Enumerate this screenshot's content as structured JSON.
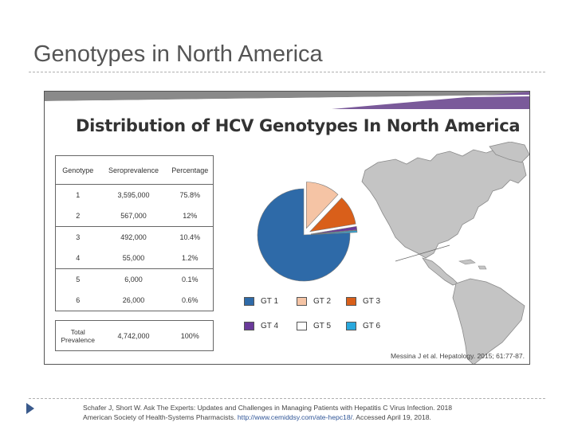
{
  "slide": {
    "title": "Genotypes in North America"
  },
  "figure": {
    "title": "Distribution of HCV Genotypes In North America",
    "citation": "Messina J et al. Hepatology. 2015; 61:77-87.",
    "banner_colors": [
      "#8a8a8a",
      "#7a5a9a"
    ]
  },
  "table": {
    "headers": [
      "Genotype",
      "Seroprevalence",
      "Percentage"
    ],
    "rows": [
      [
        "1",
        "3,595,000",
        "75.8%"
      ],
      [
        "2",
        "567,000",
        "12%"
      ],
      [
        "3",
        "492,000",
        "10.4%"
      ],
      [
        "4",
        "55,000",
        "1.2%"
      ],
      [
        "5",
        "6,000",
        "0.1%"
      ],
      [
        "6",
        "26,000",
        "0.6%"
      ]
    ],
    "total": [
      "Total Prevalence",
      "4,742,000",
      "100%"
    ]
  },
  "chart_data": {
    "type": "pie",
    "title": "Distribution of HCV Genotypes In North America",
    "categories": [
      "GT 1",
      "GT 2",
      "GT 3",
      "GT 4",
      "GT 5",
      "GT 6"
    ],
    "values": [
      75.8,
      12,
      10.4,
      1.2,
      0.1,
      0.6
    ],
    "colors": [
      "#2e6aa8",
      "#f5c4a5",
      "#d95f1a",
      "#6a3a9a",
      "#ffffff",
      "#29a8dd"
    ],
    "legend": [
      {
        "label": "GT 1",
        "color": "#2e6aa8"
      },
      {
        "label": "GT 2",
        "color": "#f5c4a5"
      },
      {
        "label": "GT 3",
        "color": "#d95f1a"
      },
      {
        "label": "GT 4",
        "color": "#6a3a9a"
      },
      {
        "label": "GT 5",
        "color": "#ffffff"
      },
      {
        "label": "GT 6",
        "color": "#29a8dd"
      }
    ],
    "legend_placement": "bottom"
  },
  "footnote": {
    "line1": "Schafer J, Short W. Ask The Experts: Updates and Challenges in Managing Patients with Hepatitis C Virus Infection. 2018",
    "line2_prefix": "American Society of Health-Systems Pharmacists.",
    "url": "http://www.cemiddsy.com/ate-hepc18/",
    "line2_suffix": ". Accessed April 19, 2018."
  }
}
